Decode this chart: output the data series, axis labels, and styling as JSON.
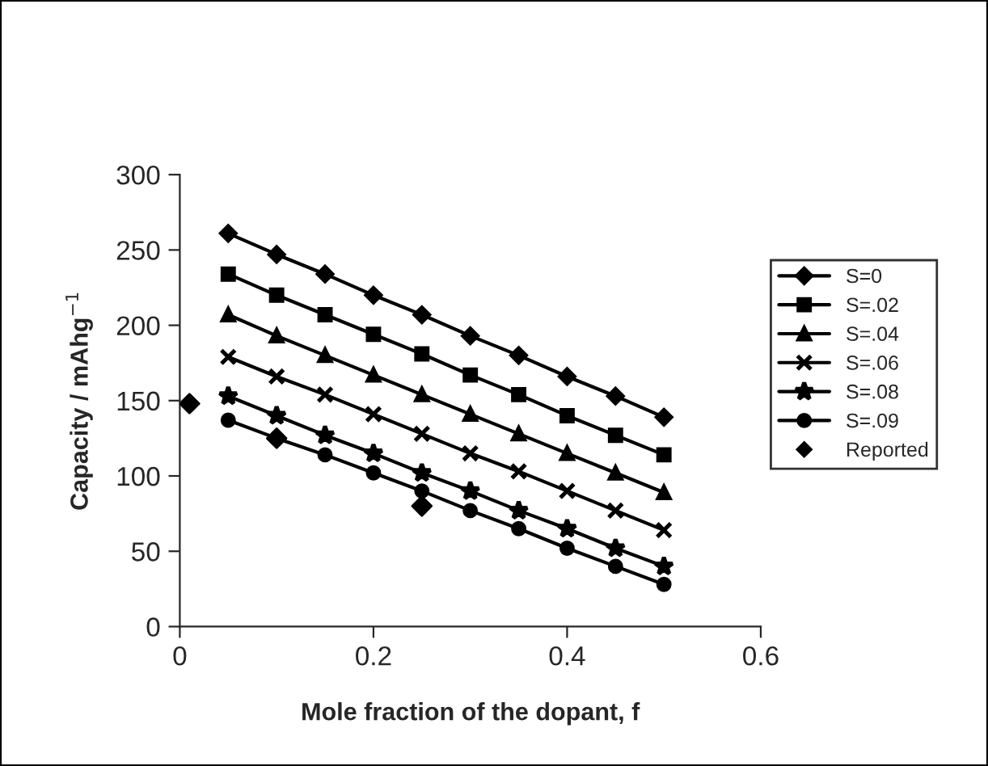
{
  "chart_data": {
    "type": "line",
    "xlabel": "Mole fraction of the dopant, f",
    "ylabel": "Capacity / mAhg$^{−1}$",
    "x": [
      0.05,
      0.1,
      0.15,
      0.2,
      0.25,
      0.3,
      0.35,
      0.4,
      0.45,
      0.5
    ],
    "series": [
      {
        "name": "S=0",
        "color": "#000000",
        "marker": "diamond",
        "values": [
          261,
          247,
          234,
          220,
          207,
          193,
          180,
          166,
          153,
          139
        ]
      },
      {
        "name": "S=.02",
        "color": "#000000",
        "marker": "square",
        "values": [
          234,
          220,
          207,
          194,
          181,
          167,
          154,
          140,
          127,
          114
        ]
      },
      {
        "name": "S=.04",
        "color": "#000000",
        "marker": "triangle",
        "values": [
          207,
          193,
          180,
          167,
          154,
          141,
          128,
          115,
          102,
          89
        ]
      },
      {
        "name": "S=.06",
        "color": "#000000",
        "marker": "cross",
        "values": [
          179,
          166,
          154,
          141,
          128,
          115,
          103,
          90,
          77,
          64
        ]
      },
      {
        "name": "S=.08",
        "color": "#000000",
        "marker": "star",
        "values": [
          153,
          140,
          127,
          115,
          102,
          90,
          77,
          65,
          52,
          40
        ]
      },
      {
        "name": "S=.09",
        "color": "#000000",
        "marker": "circle",
        "values": [
          137,
          125,
          114,
          102,
          90,
          77,
          65,
          52,
          40,
          28
        ]
      },
      {
        "name": "Reported",
        "type": "scatter",
        "color": "#000000",
        "marker": "diamond",
        "x": [
          0.01,
          0.1,
          0.25
        ],
        "values": [
          148,
          125,
          80
        ]
      }
    ],
    "xlim": [
      0,
      0.6
    ],
    "xticks": [
      0,
      0.2,
      0.4,
      0.6
    ],
    "ylim": [
      0,
      300
    ],
    "yticks": [
      0,
      50,
      100,
      150,
      200,
      250,
      300
    ],
    "grid": false,
    "legend": "right"
  }
}
